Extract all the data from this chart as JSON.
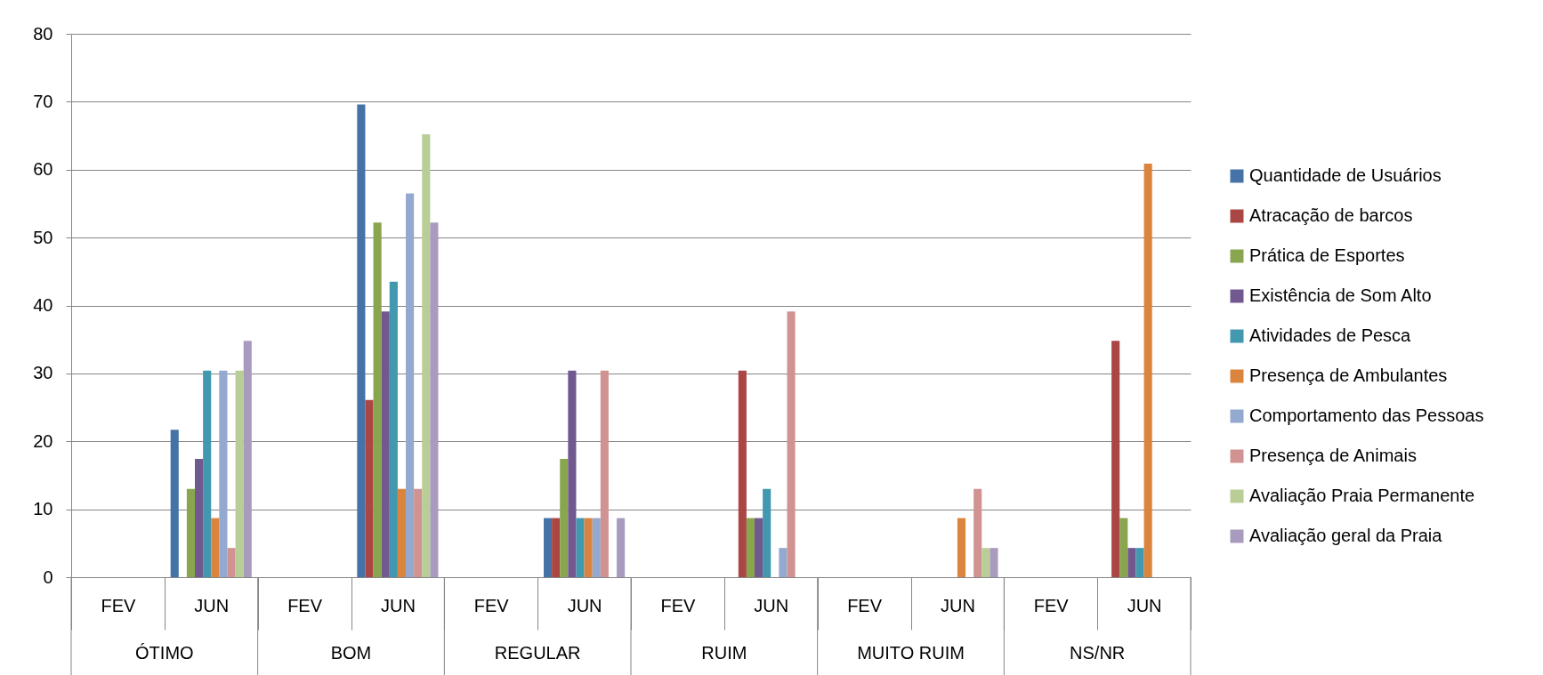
{
  "chart_data": {
    "type": "bar",
    "categories": [
      "FEV",
      "JUN",
      "FEV",
      "JUN",
      "FEV",
      "JUN",
      "FEV",
      "JUN",
      "FEV",
      "JUN",
      "FEV",
      "JUN"
    ],
    "annotations": [
      "ÓTIMO",
      "BOM",
      "REGULAR",
      "RUIM",
      "MUITO RUIM",
      "NS/NR"
    ],
    "series": [
      {
        "name": "Quantidade de Usuários",
        "color": "#4572a7",
        "values": [
          null,
          21.7,
          null,
          69.6,
          null,
          8.7,
          null,
          null,
          null,
          null,
          null,
          null
        ]
      },
      {
        "name": "Atracação de barcos",
        "color": "#aa4643",
        "values": [
          null,
          null,
          null,
          26.1,
          null,
          8.7,
          null,
          30.4,
          null,
          null,
          null,
          34.8
        ]
      },
      {
        "name": "Prática de Esportes",
        "color": "#89a54e",
        "values": [
          null,
          13.0,
          null,
          52.2,
          null,
          17.4,
          null,
          8.7,
          null,
          null,
          null,
          8.7
        ]
      },
      {
        "name": "Existência de Som Alto",
        "color": "#71588f",
        "values": [
          null,
          17.4,
          null,
          39.1,
          null,
          30.4,
          null,
          8.7,
          null,
          null,
          null,
          4.3
        ]
      },
      {
        "name": "Atividades de Pesca",
        "color": "#4198af",
        "values": [
          null,
          30.4,
          null,
          43.5,
          null,
          8.7,
          null,
          13.0,
          null,
          null,
          null,
          4.3
        ]
      },
      {
        "name": "Presença de Ambulantes",
        "color": "#db843d",
        "values": [
          null,
          8.7,
          null,
          13.0,
          null,
          8.7,
          null,
          null,
          null,
          8.7,
          null,
          60.9
        ]
      },
      {
        "name": "Comportamento das Pessoas",
        "color": "#93a9cf",
        "values": [
          null,
          30.4,
          null,
          56.5,
          null,
          8.7,
          null,
          4.3,
          null,
          null,
          null,
          null
        ]
      },
      {
        "name": "Presença de Animais",
        "color": "#d19392",
        "values": [
          null,
          4.3,
          null,
          13.0,
          null,
          30.4,
          null,
          39.1,
          null,
          13.0,
          null,
          null
        ]
      },
      {
        "name": "Avaliação Praia Permanente",
        "color": "#b9cd96",
        "values": [
          null,
          30.4,
          null,
          65.2,
          null,
          null,
          null,
          null,
          null,
          4.3,
          null,
          null
        ]
      },
      {
        "name": "Avaliação geral da Praia",
        "color": "#a99bbd",
        "values": [
          null,
          34.8,
          null,
          52.2,
          null,
          8.7,
          null,
          null,
          null,
          4.3,
          null,
          null
        ]
      }
    ],
    "ylim": [
      0,
      80
    ],
    "yticks": [
      0,
      10,
      20,
      30,
      40,
      50,
      60,
      70,
      80
    ],
    "grid": "y",
    "legend": "right"
  }
}
